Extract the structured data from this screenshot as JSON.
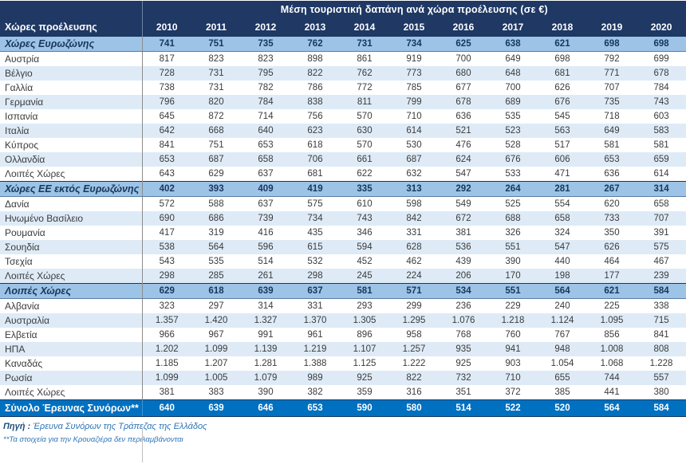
{
  "chart_data": {
    "type": "table",
    "title": "Μέση τουριστική δαπάνη  ανά χώρα προέλευσης (σε €)",
    "row_header": "Χώρες προέλευσης",
    "categories": [
      "2010",
      "2011",
      "2012",
      "2013",
      "2014",
      "2015",
      "2016",
      "2017",
      "2018",
      "2019",
      "2020"
    ],
    "rows": [
      {
        "label": "Χώρες Ευρωζώνης",
        "type": "section",
        "values": [
          "741",
          "751",
          "735",
          "762",
          "731",
          "734",
          "625",
          "638",
          "621",
          "698",
          "698"
        ]
      },
      {
        "label": "Αυστρία",
        "type": "data",
        "values": [
          "817",
          "823",
          "823",
          "898",
          "861",
          "919",
          "700",
          "649",
          "698",
          "792",
          "699"
        ]
      },
      {
        "label": "Βέλγιο",
        "type": "data",
        "values": [
          "728",
          "731",
          "795",
          "822",
          "762",
          "773",
          "680",
          "648",
          "681",
          "771",
          "678"
        ]
      },
      {
        "label": "Γαλλία",
        "type": "data",
        "values": [
          "738",
          "731",
          "782",
          "786",
          "772",
          "785",
          "677",
          "700",
          "626",
          "707",
          "784"
        ]
      },
      {
        "label": "Γερμανία",
        "type": "data",
        "values": [
          "796",
          "820",
          "784",
          "838",
          "811",
          "799",
          "678",
          "689",
          "676",
          "735",
          "743"
        ]
      },
      {
        "label": "Ισπανία",
        "type": "data",
        "values": [
          "645",
          "872",
          "714",
          "756",
          "570",
          "710",
          "636",
          "535",
          "545",
          "718",
          "603"
        ]
      },
      {
        "label": "Ιταλία",
        "type": "data",
        "values": [
          "642",
          "668",
          "640",
          "623",
          "630",
          "614",
          "521",
          "523",
          "563",
          "649",
          "583"
        ]
      },
      {
        "label": "Κύπρος",
        "type": "data",
        "values": [
          "841",
          "751",
          "653",
          "618",
          "570",
          "530",
          "476",
          "528",
          "517",
          "581",
          "581"
        ]
      },
      {
        "label": "Ολλανδία",
        "type": "data",
        "values": [
          "653",
          "687",
          "658",
          "706",
          "661",
          "687",
          "624",
          "676",
          "606",
          "653",
          "659"
        ]
      },
      {
        "label": "Λοιπές Χώρες",
        "type": "data",
        "values": [
          "643",
          "629",
          "637",
          "681",
          "622",
          "632",
          "547",
          "533",
          "471",
          "636",
          "614"
        ]
      },
      {
        "label": "Χώρες ΕΕ εκτός Ευρωζώνης",
        "type": "section",
        "values": [
          "402",
          "393",
          "409",
          "419",
          "335",
          "313",
          "292",
          "264",
          "281",
          "267",
          "314"
        ]
      },
      {
        "label": "Δανία",
        "type": "data",
        "values": [
          "572",
          "588",
          "637",
          "575",
          "610",
          "598",
          "549",
          "525",
          "554",
          "620",
          "658"
        ]
      },
      {
        "label": "Ηνωμένο Βασίλειο",
        "type": "data",
        "values": [
          "690",
          "686",
          "739",
          "734",
          "743",
          "842",
          "672",
          "688",
          "658",
          "733",
          "707"
        ]
      },
      {
        "label": "Ρουμανία",
        "type": "data",
        "values": [
          "417",
          "319",
          "416",
          "435",
          "346",
          "331",
          "381",
          "326",
          "324",
          "350",
          "391"
        ]
      },
      {
        "label": "Σουηδία",
        "type": "data",
        "values": [
          "538",
          "564",
          "596",
          "615",
          "594",
          "628",
          "536",
          "551",
          "547",
          "626",
          "575"
        ]
      },
      {
        "label": "Τσεχία",
        "type": "data",
        "values": [
          "543",
          "535",
          "514",
          "532",
          "452",
          "462",
          "439",
          "390",
          "440",
          "464",
          "467"
        ]
      },
      {
        "label": "Λοιπές Χώρες",
        "type": "data",
        "values": [
          "298",
          "285",
          "261",
          "298",
          "245",
          "224",
          "206",
          "170",
          "198",
          "177",
          "239"
        ]
      },
      {
        "label": "Λοιπές Χώρες",
        "type": "section",
        "values": [
          "629",
          "618",
          "639",
          "637",
          "581",
          "571",
          "534",
          "551",
          "564",
          "621",
          "584"
        ]
      },
      {
        "label": "Αλβανία",
        "type": "data",
        "values": [
          "323",
          "297",
          "314",
          "331",
          "293",
          "299",
          "236",
          "229",
          "240",
          "225",
          "338"
        ]
      },
      {
        "label": "Αυστραλία",
        "type": "data",
        "values": [
          "1.357",
          "1.420",
          "1.327",
          "1.370",
          "1.305",
          "1.295",
          "1.076",
          "1.218",
          "1.124",
          "1.095",
          "715"
        ]
      },
      {
        "label": "Ελβετία",
        "type": "data",
        "values": [
          "966",
          "967",
          "991",
          "961",
          "896",
          "958",
          "768",
          "760",
          "767",
          "856",
          "841"
        ]
      },
      {
        "label": "ΗΠΑ",
        "type": "data",
        "values": [
          "1.202",
          "1.099",
          "1.139",
          "1.219",
          "1.107",
          "1.257",
          "935",
          "941",
          "948",
          "1.008",
          "808"
        ]
      },
      {
        "label": "Καναδάς",
        "type": "data",
        "values": [
          "1.185",
          "1.207",
          "1.281",
          "1.388",
          "1.125",
          "1.222",
          "925",
          "903",
          "1.054",
          "1.068",
          "1.228"
        ]
      },
      {
        "label": "Ρωσία",
        "type": "data",
        "values": [
          "1.099",
          "1.005",
          "1.079",
          "989",
          "925",
          "822",
          "732",
          "710",
          "655",
          "744",
          "557"
        ]
      },
      {
        "label": "Λοιπές Χώρες",
        "type": "data",
        "values": [
          "381",
          "383",
          "390",
          "382",
          "359",
          "316",
          "351",
          "372",
          "385",
          "441",
          "380"
        ]
      },
      {
        "label": "Σύνολο Έρευνας Συνόρων**",
        "type": "total",
        "values": [
          "640",
          "639",
          "646",
          "653",
          "590",
          "580",
          "514",
          "522",
          "520",
          "564",
          "584"
        ]
      }
    ],
    "footer": {
      "source_label": "Πηγή :",
      "source_text": "Έρευνα Συνόρων της Τράπεζας της Ελλάδος",
      "footnote": "**Τα στοιχεία για την Κρουαζιέρα δεν περιλαμβάνονται"
    },
    "layout": {
      "legend_position": "none",
      "grid": "row-banding"
    },
    "colors": {
      "header_bg": "#1F3864",
      "header_text": "#FFFFFF",
      "section_bg": "#9DC3E6",
      "section_text": "#17375E",
      "band_bg": "#DEEBF7",
      "total_bg": "#0070C0",
      "total_text": "#FFFFFF",
      "body_text": "#3B3B3B",
      "footer_text": "#2E75B6"
    }
  }
}
